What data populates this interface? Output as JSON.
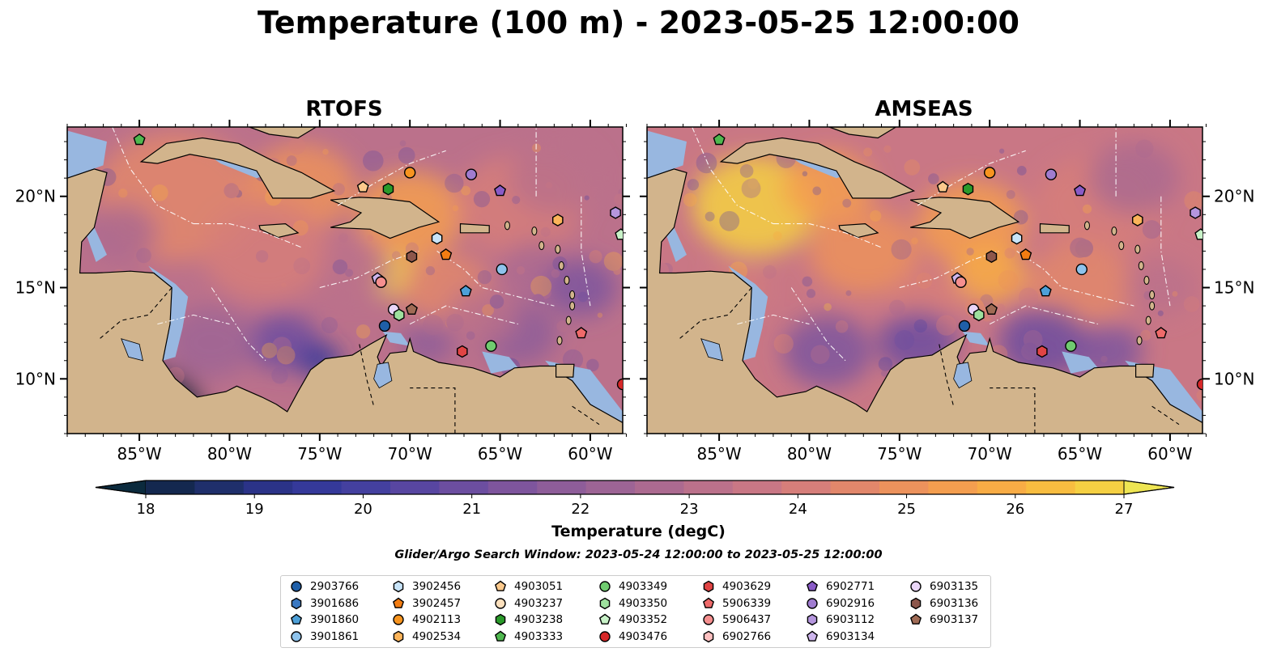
{
  "title": "Temperature (100 m) - 2023-05-25 12:00:00",
  "panels": [
    {
      "title": "RTOFS"
    },
    {
      "title": "AMSEAS"
    }
  ],
  "axes": {
    "lon_labels": [
      "85°W",
      "80°W",
      "75°W",
      "70°W",
      "65°W",
      "60°W"
    ],
    "lon_values": [
      -85,
      -80,
      -75,
      -70,
      -65,
      -60
    ],
    "lat_labels": [
      "20°N",
      "15°N",
      "10°N"
    ],
    "lat_values": [
      20,
      15,
      10
    ],
    "lon_range": [
      -89,
      -58.2
    ],
    "lat_range": [
      7,
      23.8
    ]
  },
  "colorbar": {
    "label": "Temperature (degC)",
    "ticks": [
      "18",
      "19",
      "20",
      "21",
      "22",
      "23",
      "24",
      "25",
      "26",
      "27"
    ],
    "range": [
      18,
      27
    ],
    "extend": "both",
    "colors": [
      "#0b2a3d",
      "#14284f",
      "#1f2f6b",
      "#2b3388",
      "#35399a",
      "#44409f",
      "#5846a1",
      "#6c4ea0",
      "#7e559d",
      "#8e5d99",
      "#9d6495",
      "#ac6a90",
      "#bb718b",
      "#c97785",
      "#d67e7a",
      "#e2876b",
      "#ec925c",
      "#f49e4f",
      "#f8ac45",
      "#f8bd40",
      "#f5d043",
      "#eee553"
    ]
  },
  "search_window": "Glider/Argo Search Window: 2023-05-24 12:00:00 to 2023-05-25 12:00:00",
  "land_color": "#d2b48c",
  "shallow_color": "#98b7e0",
  "legend": [
    {
      "id": "2903766",
      "color": "#1f5fa8",
      "marker": "circle"
    },
    {
      "id": "3901686",
      "color": "#3a78c2",
      "marker": "hexagon"
    },
    {
      "id": "3901860",
      "color": "#4da0d8",
      "marker": "pentagon"
    },
    {
      "id": "3901861",
      "color": "#8ec3ec",
      "marker": "circle"
    },
    {
      "id": "3902456",
      "color": "#c8e4f8",
      "marker": "hexagon"
    },
    {
      "id": "3902457",
      "color": "#f37d12",
      "marker": "pentagon"
    },
    {
      "id": "4902113",
      "color": "#f7941f",
      "marker": "circle"
    },
    {
      "id": "4902534",
      "color": "#fbb45a",
      "marker": "hexagon"
    },
    {
      "id": "4903051",
      "color": "#fcc98c",
      "marker": "pentagon"
    },
    {
      "id": "4903237",
      "color": "#fde0bd",
      "marker": "circle"
    },
    {
      "id": "4903238",
      "color": "#2a9a2a",
      "marker": "hexagon"
    },
    {
      "id": "4903333",
      "color": "#4fb84f",
      "marker": "pentagon"
    },
    {
      "id": "4903349",
      "color": "#6fcb6f",
      "marker": "circle"
    },
    {
      "id": "4903350",
      "color": "#9ee09e",
      "marker": "hexagon"
    },
    {
      "id": "4903352",
      "color": "#c8f2c8",
      "marker": "pentagon"
    },
    {
      "id": "4903476",
      "color": "#d62728",
      "marker": "circle"
    },
    {
      "id": "4903629",
      "color": "#e04444",
      "marker": "hexagon"
    },
    {
      "id": "5906339",
      "color": "#ef6a6a",
      "marker": "pentagon"
    },
    {
      "id": "5906437",
      "color": "#f58f8f",
      "marker": "circle"
    },
    {
      "id": "6902766",
      "color": "#fcc0c0",
      "marker": "hexagon"
    },
    {
      "id": "6902771",
      "color": "#8a5bc7",
      "marker": "pentagon"
    },
    {
      "id": "6902916",
      "color": "#a07cd0",
      "marker": "circle"
    },
    {
      "id": "6903112",
      "color": "#b596de",
      "marker": "hexagon"
    },
    {
      "id": "6903134",
      "color": "#cdb5ec",
      "marker": "pentagon"
    },
    {
      "id": "6903135",
      "color": "#ead6f8",
      "marker": "circle"
    },
    {
      "id": "6903136",
      "color": "#8c564b",
      "marker": "hexagon"
    },
    {
      "id": "6903137",
      "color": "#a06b55",
      "marker": "pentagon"
    }
  ],
  "floats": [
    {
      "id": "4903333",
      "lon": -85,
      "lat": 23.1
    },
    {
      "id": "4902113",
      "lon": -70,
      "lat": 21.3
    },
    {
      "id": "6902916",
      "lon": -66.6,
      "lat": 21.2
    },
    {
      "id": "6902771",
      "lon": -65,
      "lat": 20.3
    },
    {
      "id": "4903051",
      "lon": -72.6,
      "lat": 20.5
    },
    {
      "id": "4903238",
      "lon": -71.2,
      "lat": 20.4
    },
    {
      "id": "6903112",
      "lon": -58.6,
      "lat": 19.1
    },
    {
      "id": "4902534",
      "lon": -61.8,
      "lat": 18.7
    },
    {
      "id": "4903352",
      "lon": -58.3,
      "lat": 17.9
    },
    {
      "id": "3902456",
      "lon": -68.5,
      "lat": 17.7
    },
    {
      "id": "3902457",
      "lon": -68,
      "lat": 16.8
    },
    {
      "id": "6903136",
      "lon": -69.9,
      "lat": 16.7
    },
    {
      "id": "3901861",
      "lon": -64.9,
      "lat": 16
    },
    {
      "id": "6903134",
      "lon": -71.8,
      "lat": 15.5
    },
    {
      "id": "5906437",
      "lon": -71.6,
      "lat": 15.3
    },
    {
      "id": "3901860",
      "lon": -66.9,
      "lat": 14.8
    },
    {
      "id": "6903135",
      "lon": -70.9,
      "lat": 13.8
    },
    {
      "id": "4903350",
      "lon": -70.6,
      "lat": 13.5
    },
    {
      "id": "6903137",
      "lon": -69.9,
      "lat": 13.8
    },
    {
      "id": "2903766",
      "lon": -71.4,
      "lat": 12.9
    },
    {
      "id": "5906339",
      "lon": -60.5,
      "lat": 12.5
    },
    {
      "id": "4903349",
      "lon": -65.5,
      "lat": 11.8
    },
    {
      "id": "4903629",
      "lon": -67.1,
      "lat": 11.5
    },
    {
      "id": "4903476",
      "lon": -58.2,
      "lat": 9.7
    }
  ]
}
